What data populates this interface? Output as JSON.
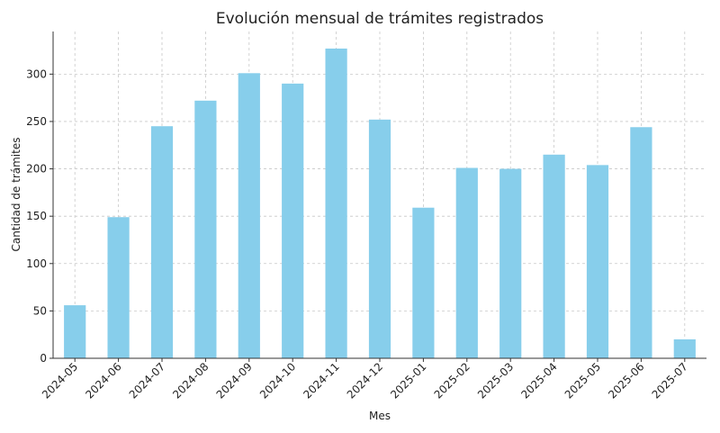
{
  "chart_data": {
    "type": "bar",
    "title": "Evolución mensual de trámites registrados",
    "xlabel": "Mes",
    "ylabel": "Cantidad de trámites",
    "categories": [
      "2024-05",
      "2024-06",
      "2024-07",
      "2024-08",
      "2024-09",
      "2024-10",
      "2024-11",
      "2024-12",
      "2025-01",
      "2025-02",
      "2025-03",
      "2025-04",
      "2025-05",
      "2025-06",
      "2025-07"
    ],
    "values": [
      56,
      149,
      245,
      272,
      301,
      290,
      327,
      252,
      159,
      201,
      200,
      215,
      204,
      244,
      20
    ],
    "ylim": [
      0,
      345
    ],
    "yticks": [
      0,
      50,
      100,
      150,
      200,
      250,
      300
    ],
    "grid": true,
    "bar_color": "#87ceeb"
  }
}
